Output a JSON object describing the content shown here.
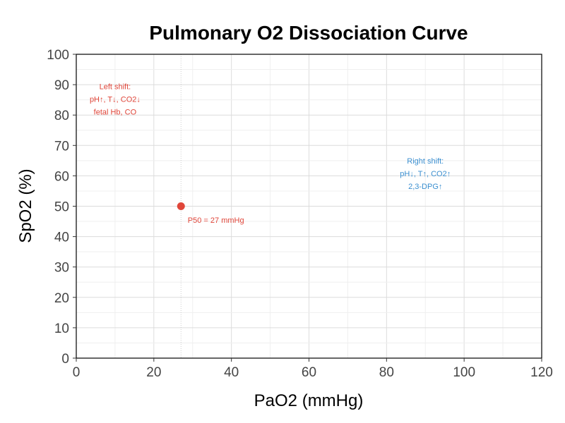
{
  "chart_data": {
    "type": "scatter",
    "title": "Pulmonary O2 Dissociation Curve",
    "xlabel": "PaO2 (mmHg)",
    "ylabel": "SpO2 (%)",
    "xlim": [
      0,
      120
    ],
    "ylim": [
      0,
      100
    ],
    "xticks": [
      0,
      20,
      40,
      60,
      80,
      100,
      120
    ],
    "yticks": [
      0,
      10,
      20,
      30,
      40,
      50,
      60,
      70,
      80,
      90,
      100
    ],
    "grid": true,
    "points": [
      {
        "x": 27,
        "y": 50,
        "color": "#e0463a"
      }
    ],
    "reference_line": {
      "x": 27,
      "style": "dotted"
    },
    "annotations": [
      {
        "id": "p50",
        "text": [
          "P50 = 27 mmHg"
        ],
        "x": 36,
        "y": 44.5,
        "color": "#e0463a"
      },
      {
        "id": "left-shift",
        "text": [
          "Left shift:",
          "pH↑, T↓, CO2↓",
          "fetal Hb, CO"
        ],
        "x": 10,
        "y": 88.5,
        "color": "#e0463a"
      },
      {
        "id": "right-shift",
        "text": [
          "Right shift:",
          "pH↓, T↑, CO2↑",
          "2,3-DPG↑"
        ],
        "x": 90,
        "y": 64,
        "color": "#3b8fd0"
      }
    ]
  }
}
